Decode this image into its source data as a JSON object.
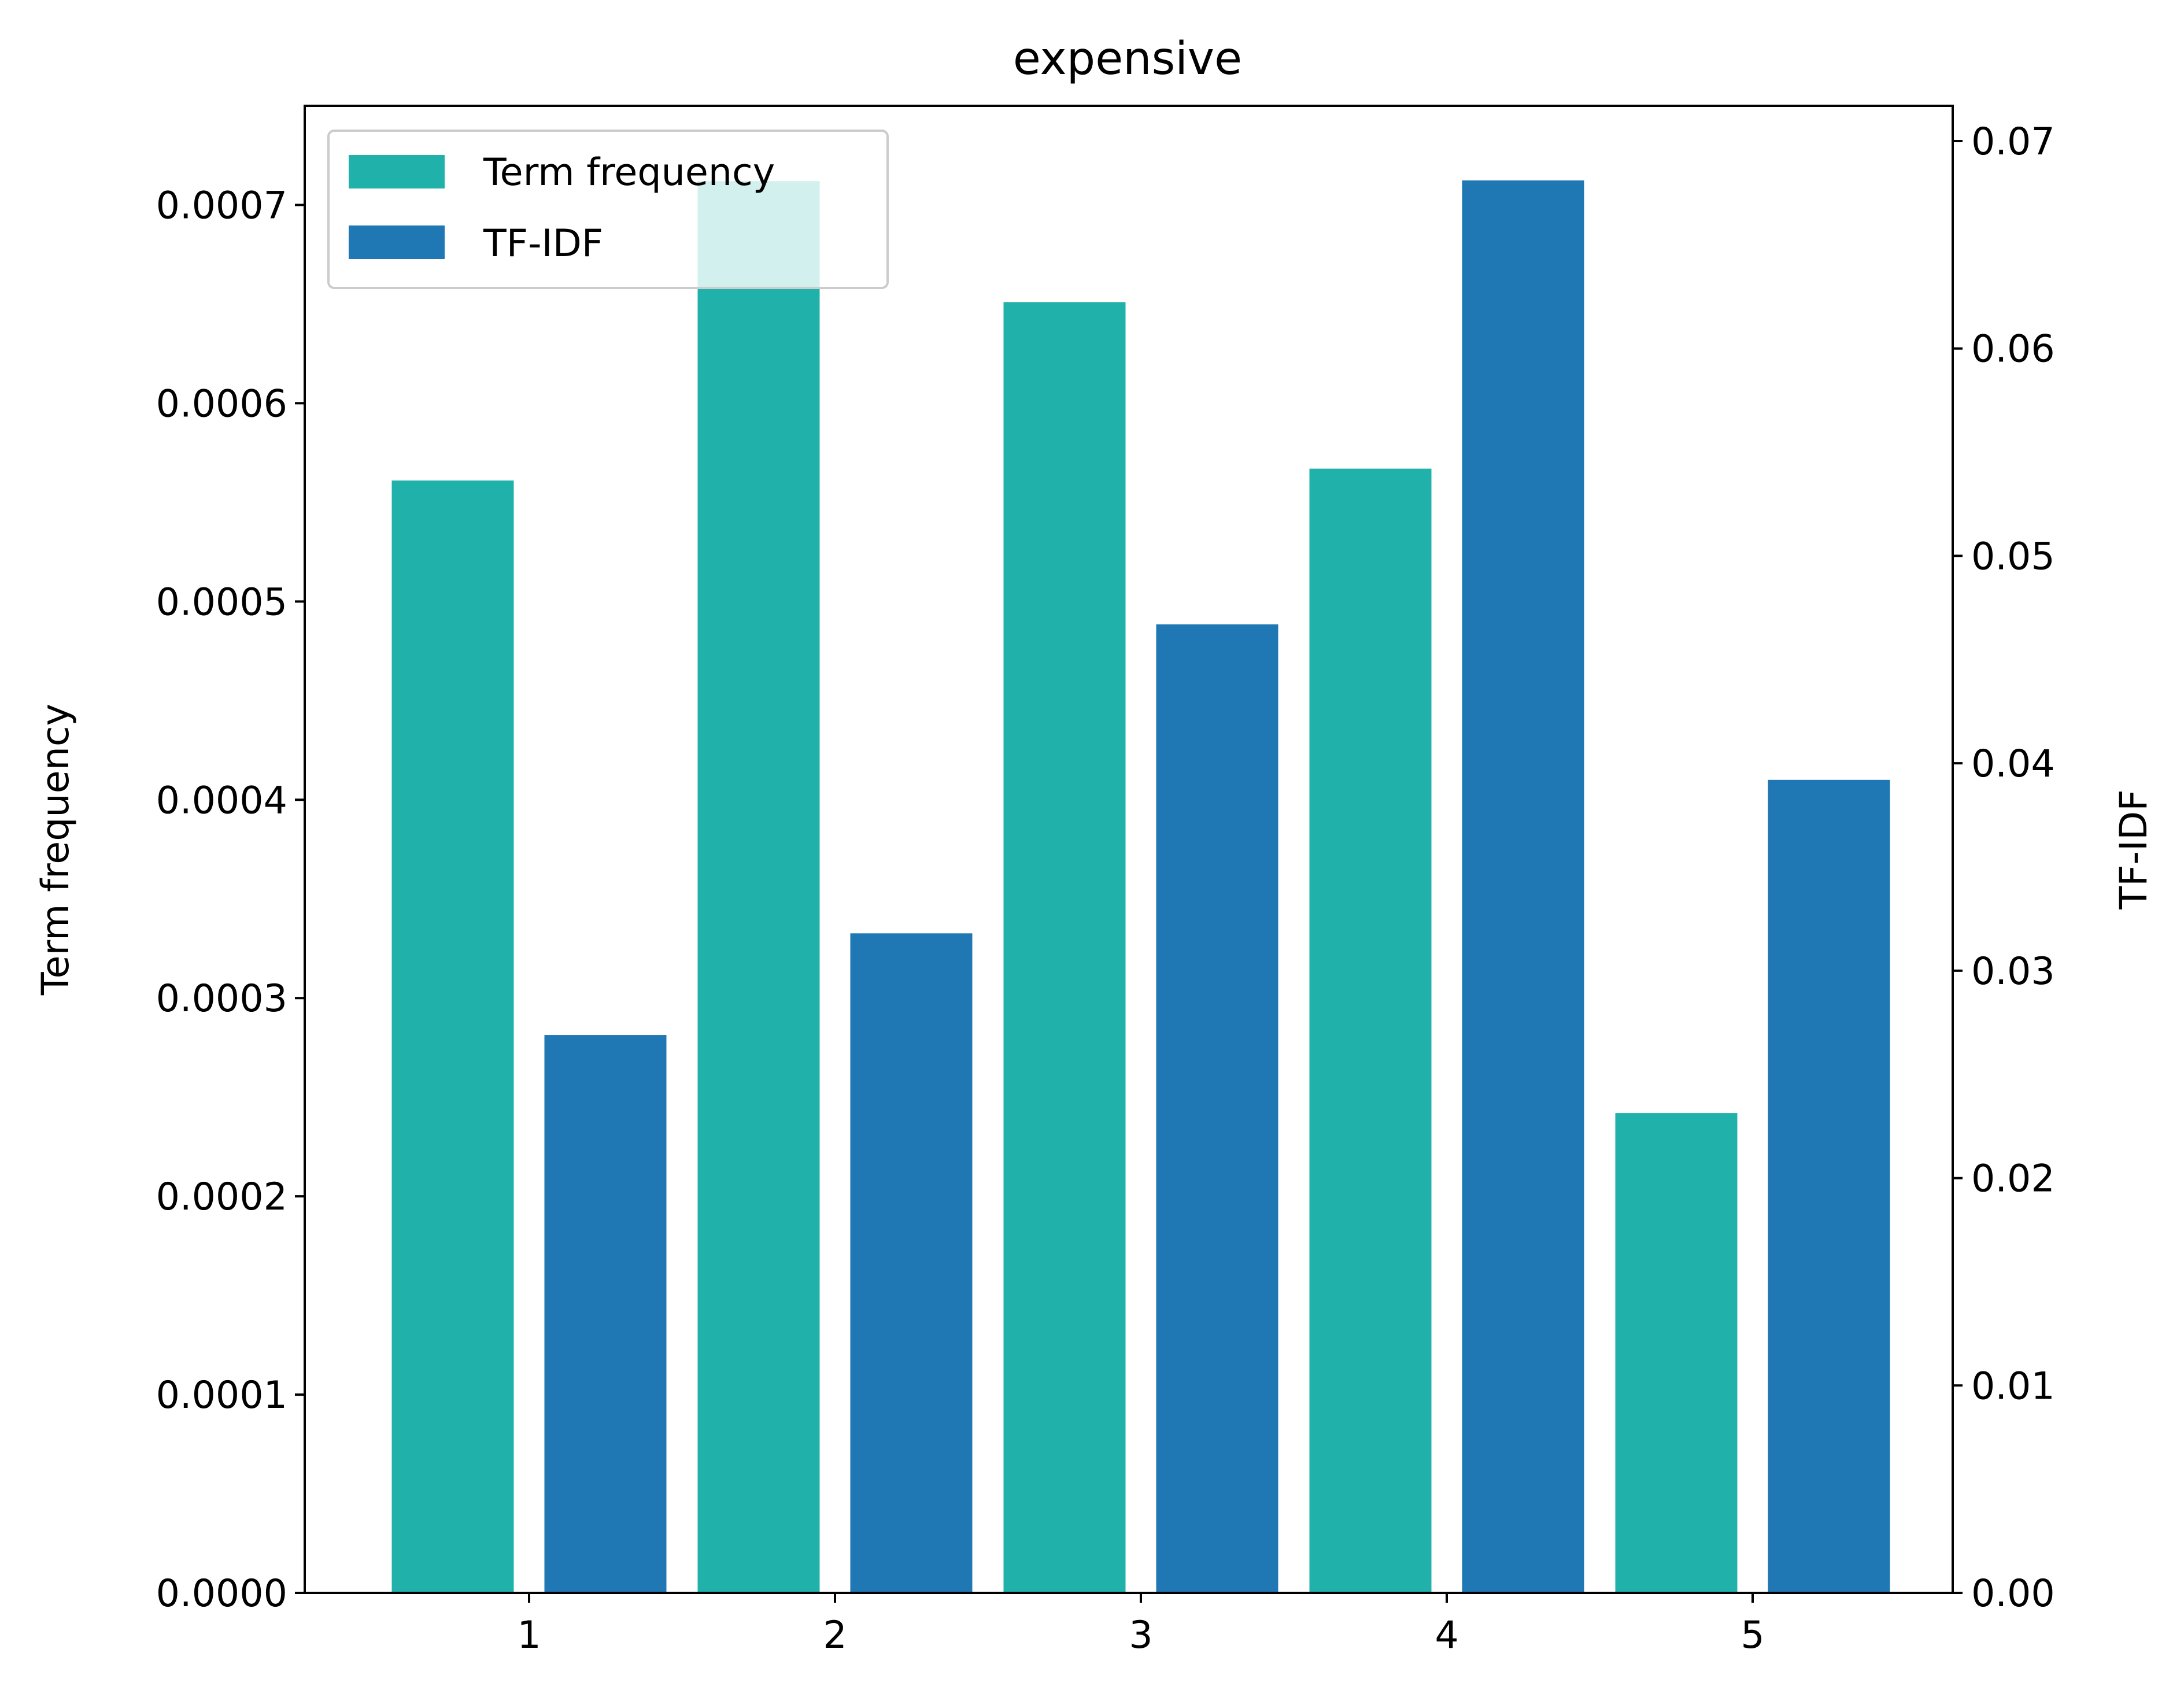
{
  "chart_data": {
    "type": "bar",
    "title": "expensive",
    "xlabel": "",
    "ylabel": "Term frequency",
    "ylabel_right": "TF-IDF",
    "categories": [
      "1",
      "2",
      "3",
      "4",
      "5"
    ],
    "series": [
      {
        "name": "Term frequency",
        "axis": "left",
        "color": "#20b2aa",
        "values": [
          0.000561,
          0.000712,
          0.000651,
          0.000567,
          0.000242
        ]
      },
      {
        "name": "TF-IDF",
        "axis": "right",
        "color": "#1f77b4",
        "values": [
          0.0269,
          0.0318,
          0.0467,
          0.0681,
          0.0392
        ]
      }
    ],
    "ylim": [
      0,
      0.00075
    ],
    "ylim_right": [
      0,
      0.0717
    ],
    "yticks": [
      "0.0000",
      "0.0001",
      "0.0002",
      "0.0003",
      "0.0004",
      "0.0005",
      "0.0006",
      "0.0007"
    ],
    "yticks_right": [
      "0.00",
      "0.01",
      "0.02",
      "0.03",
      "0.04",
      "0.05",
      "0.06",
      "0.07"
    ],
    "legend_position": "upper-left",
    "grid": false
  }
}
